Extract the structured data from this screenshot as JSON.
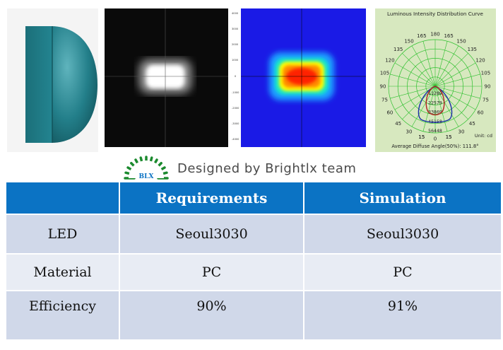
{
  "credit": {
    "logo_text": "BLX",
    "text": "Designed by Brightlx team"
  },
  "images": {
    "model": "lens-3d-model",
    "grayscale": "illuminance-grayscale-map",
    "falsecolor": "illuminance-false-color-map",
    "polar": {
      "title": "Luminous Intensity Distribution Curve",
      "angles_top": [
        "165",
        "180",
        "165"
      ],
      "angles_left": [
        "150",
        "135",
        "120",
        "105",
        "90",
        "75",
        "60",
        "45",
        "30",
        "15"
      ],
      "angles_right": [
        "150",
        "135",
        "120",
        "105",
        "90",
        "75",
        "60",
        "45",
        "30",
        "15"
      ],
      "angles_bottom": [
        "15",
        "0",
        "15"
      ],
      "radial_labels": [
        "11289",
        "22579",
        "33869",
        "45158",
        "56448"
      ],
      "unit": "Unit: cd",
      "footer": "Average Diffuse Angle(50%): 111.8°"
    },
    "colors": {
      "lens": "#1f7e89",
      "hot": "#ff2000",
      "field": "#1a1ae6",
      "polar_bg": "#d7e8bf"
    }
  },
  "table": {
    "headers": [
      "",
      "Requirements",
      "Simulation"
    ],
    "rows": [
      [
        "LED",
        "Seoul3030",
        "Seoul3030"
      ],
      [
        "Material",
        "PC",
        "PC"
      ],
      [
        "Efficiency",
        "90%",
        "91%"
      ]
    ]
  },
  "colors": {
    "header": "#0b73c4",
    "row_odd": "#d0d8e9",
    "row_even": "#e8ecf4"
  }
}
